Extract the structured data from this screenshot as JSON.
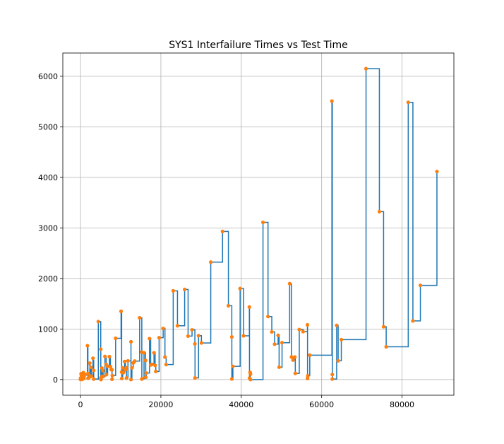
{
  "chart_data": {
    "type": "line",
    "title": "SYS1 Interfailure Times vs Test Time",
    "xlabel": "",
    "ylabel": "",
    "xlim": [
      -4400,
      92900
    ],
    "ylim": [
      -310,
      6460
    ],
    "grid": true,
    "x_ticks": [
      0,
      20000,
      40000,
      60000,
      80000
    ],
    "x_tick_labels": [
      "0",
      "20000",
      "40000",
      "60000",
      "80000"
    ],
    "y_ticks": [
      0,
      1000,
      2000,
      3000,
      4000,
      5000,
      6000
    ],
    "y_tick_labels": [
      "0",
      "1000",
      "2000",
      "3000",
      "4000",
      "5000",
      "6000"
    ],
    "colors": {
      "line": "#1f77b4",
      "marker": "#ff7f0e"
    },
    "series": [
      {
        "style": "step-post with markers",
        "x": [
          3,
          33,
          146,
          227,
          342,
          351,
          353,
          444,
          556,
          571,
          709,
          759,
          836,
          860,
          968,
          1056,
          1726,
          1846,
          1872,
          1986,
          2311,
          2366,
          2608,
          2676,
          3098,
          3278,
          3288,
          4434,
          5034,
          5049,
          5085,
          5089,
          5089,
          5097,
          5324,
          5389,
          5565,
          5623,
          6080,
          6380,
          6477,
          6740,
          7192,
          7447,
          7644,
          7837,
          7843,
          7922,
          8738,
          10089,
          10237,
          10258,
          10491,
          10625,
          10982,
          11175,
          11411,
          11442,
          11811,
          12559,
          12559,
          12791,
          13121,
          13486,
          14708,
          15251,
          15261,
          15277,
          15806,
          16185,
          16229,
          16358,
          17168,
          17458,
          17758,
          18287,
          18568,
          18728,
          19556,
          20567,
          21012,
          21308,
          23063,
          24127,
          25910,
          26770,
          27753,
          28460,
          28493,
          29361,
          30085,
          32408,
          35338,
          36799,
          37642,
          37654,
          37915,
          39715,
          40580,
          42015,
          42045,
          42188,
          42296,
          42296,
          45406,
          46653,
          47596,
          48296,
          49171,
          49416,
          50145,
          52042,
          52489,
          52875,
          53321,
          53443,
          54433,
          55381,
          56463,
          56485,
          56560,
          57042,
          62551,
          62651,
          62661,
          63732,
          64103,
          64893,
          71043,
          74364,
          75409,
          76057,
          81542,
          82702,
          84566,
          88682
        ],
        "y": [
          3,
          30,
          113,
          81,
          115,
          9,
          2,
          91,
          112,
          15,
          138,
          50,
          77,
          24,
          108,
          88,
          670,
          120,
          26,
          114,
          325,
          55,
          242,
          68,
          422,
          180,
          10,
          1146,
          600,
          15,
          36,
          4,
          0,
          8,
          227,
          65,
          176,
          58,
          457,
          300,
          97,
          263,
          452,
          255,
          197,
          193,
          6,
          79,
          816,
          1351,
          148,
          21,
          233,
          134,
          357,
          193,
          236,
          31,
          369,
          748,
          0,
          232,
          330,
          365,
          1222,
          543,
          10,
          16,
          529,
          379,
          44,
          129,
          810,
          290,
          300,
          529,
          281,
          160,
          828,
          1011,
          445,
          296,
          1755,
          1064,
          1783,
          860,
          983,
          707,
          33,
          868,
          724,
          2323,
          2930,
          1461,
          843,
          12,
          261,
          1800,
          865,
          1435,
          30,
          143,
          108,
          0,
          3110,
          1247,
          943,
          700,
          875,
          245,
          729,
          1897,
          447,
          386,
          446,
          122,
          990,
          948,
          1082,
          22,
          75,
          482,
          5509,
          100,
          10,
          1071,
          371,
          790,
          6150,
          3321,
          1045,
          648,
          5485,
          1160,
          1864,
          4116
        ]
      }
    ]
  }
}
